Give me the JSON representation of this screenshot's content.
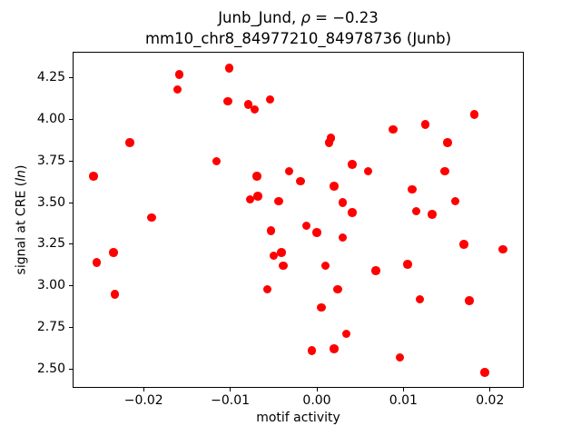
{
  "figure": {
    "title_line1_pre": "Junb_Jund, ",
    "title_line1_italic": "ρ",
    "title_line1_post": " = −0.23",
    "title_line2": "mm10_chr8_84977210_84978736 (Junb)",
    "xlabel": "motif activity",
    "ylabel_pre": "signal at CRE (",
    "ylabel_italic": "ln",
    "ylabel_post": ")"
  },
  "chart_data": {
    "type": "scatter",
    "title": "Junb_Jund, ρ = −0.23\nmm10_chr8_84977210_84978736 (Junb)",
    "xlabel": "motif activity",
    "ylabel": "signal at CRE (ln)",
    "marker_color": "#ff0000",
    "marker_shape": "circle",
    "grid": false,
    "legend": null,
    "xlim": [
      -0.0282,
      0.0239
    ],
    "ylim": [
      2.386,
      4.405
    ],
    "x_ticks": [
      -0.02,
      -0.01,
      0,
      0.01,
      0.02
    ],
    "x_tick_labels": [
      "−0.02",
      "−0.01",
      "0.00",
      "0.01",
      "0.02"
    ],
    "y_ticks": [
      2.5,
      2.75,
      3,
      3.25,
      3.5,
      3.75,
      4,
      4.25
    ],
    "y_tick_labels": [
      "2.50",
      "2.75",
      "3.00",
      "3.25",
      "3.50",
      "3.75",
      "4.00",
      "4.25"
    ],
    "points": [
      [
        -0.0159,
        4.27
      ],
      [
        -0.0161,
        4.18
      ],
      [
        -0.0101,
        4.31
      ],
      [
        -0.0103,
        4.11
      ],
      [
        -0.0079,
        4.09
      ],
      [
        -0.0072,
        4.06
      ],
      [
        -0.0054,
        4.12
      ],
      [
        -0.0216,
        3.86
      ],
      [
        -0.0116,
        3.75
      ],
      [
        -0.0258,
        3.66
      ],
      [
        -0.0069,
        3.66
      ],
      [
        -0.0032,
        3.69
      ],
      [
        -0.0019,
        3.63
      ],
      [
        -0.0077,
        3.52
      ],
      [
        -0.0068,
        3.54
      ],
      [
        -0.0044,
        3.51
      ],
      [
        -0.0191,
        3.41
      ],
      [
        0.0182,
        4.03
      ],
      [
        0.0125,
        3.97
      ],
      [
        0.0088,
        3.94
      ],
      [
        0.0016,
        3.89
      ],
      [
        0.0014,
        3.86
      ],
      [
        0.0151,
        3.86
      ],
      [
        0.0041,
        3.73
      ],
      [
        0.0059,
        3.69
      ],
      [
        0.0148,
        3.69
      ],
      [
        0.002,
        3.6
      ],
      [
        0.011,
        3.58
      ],
      [
        0.003,
        3.5
      ],
      [
        0.016,
        3.51
      ],
      [
        0.0041,
        3.44
      ],
      [
        0.0115,
        3.45
      ],
      [
        0.0133,
        3.43
      ],
      [
        -0.0012,
        3.36
      ],
      [
        -0.0235,
        3.2
      ],
      [
        -0.0254,
        3.14
      ],
      [
        -0.0233,
        2.95
      ],
      [
        -0.0053,
        3.33
      ],
      [
        -0.005,
        3.18
      ],
      [
        -0.0041,
        3.2
      ],
      [
        -0.0039,
        3.12
      ],
      [
        -0.0057,
        2.98
      ],
      [
        -0.0006,
        2.61
      ],
      [
        0.0,
        3.32
      ],
      [
        0.003,
        3.29
      ],
      [
        0.017,
        3.25
      ],
      [
        0.0215,
        3.22
      ],
      [
        0.001,
        3.12
      ],
      [
        0.0105,
        3.13
      ],
      [
        0.0068,
        3.09
      ],
      [
        0.0024,
        2.98
      ],
      [
        0.0119,
        2.92
      ],
      [
        0.0176,
        2.91
      ],
      [
        0.0005,
        2.87
      ],
      [
        0.0034,
        2.71
      ],
      [
        0.002,
        2.62
      ],
      [
        0.0096,
        2.57
      ],
      [
        0.0194,
        2.48
      ]
    ]
  }
}
